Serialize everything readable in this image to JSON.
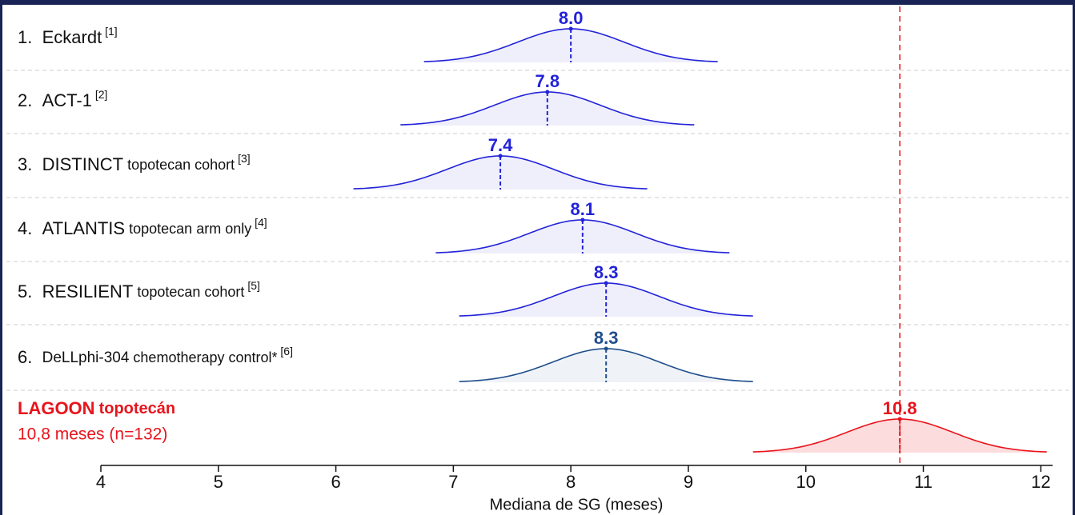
{
  "chart_data": {
    "type": "ridge",
    "xlabel": "Mediana de SG (meses)",
    "xlim": [
      4,
      12.1
    ],
    "xticks": [
      4,
      5,
      6,
      7,
      8,
      9,
      10,
      11,
      12
    ],
    "rows": [
      {
        "number": "1.",
        "name": "Eckardt",
        "ref": "[1]",
        "color": "#2323d8"
      },
      {
        "number": "2.",
        "name": "ACT-1",
        "ref": "[2]",
        "color": "#2323d8"
      },
      {
        "number": "3.",
        "name": "DISTINCT",
        "detail": "topotecan cohort",
        "ref": "[3]",
        "color": "#2323d8"
      },
      {
        "number": "4.",
        "name": "ATLANTIS",
        "detail": "topotecan arm only",
        "ref": "[4]",
        "color": "#2323d8"
      },
      {
        "number": "5.",
        "name": "RESILIENT",
        "detail": "topotecan cohort",
        "ref": "[5]",
        "color": "#2323d8"
      },
      {
        "number": "6.",
        "name": "DeLLphi-304",
        "detail": "chemotherapy control*",
        "ref": "[6]",
        "color": "#1f4e8c"
      },
      {
        "name": "LAGOON",
        "detail": "topotecán",
        "subtitle": "10,8 meses (n=132)",
        "color": "#e8141c",
        "highlight": true
      }
    ],
    "values": [
      8.0,
      7.8,
      7.4,
      8.1,
      8.3,
      8.3,
      10.8
    ],
    "value_labels": [
      "8.0",
      "7.8",
      "7.4",
      "8.1",
      "8.3",
      "8.3",
      "10.8"
    ]
  }
}
